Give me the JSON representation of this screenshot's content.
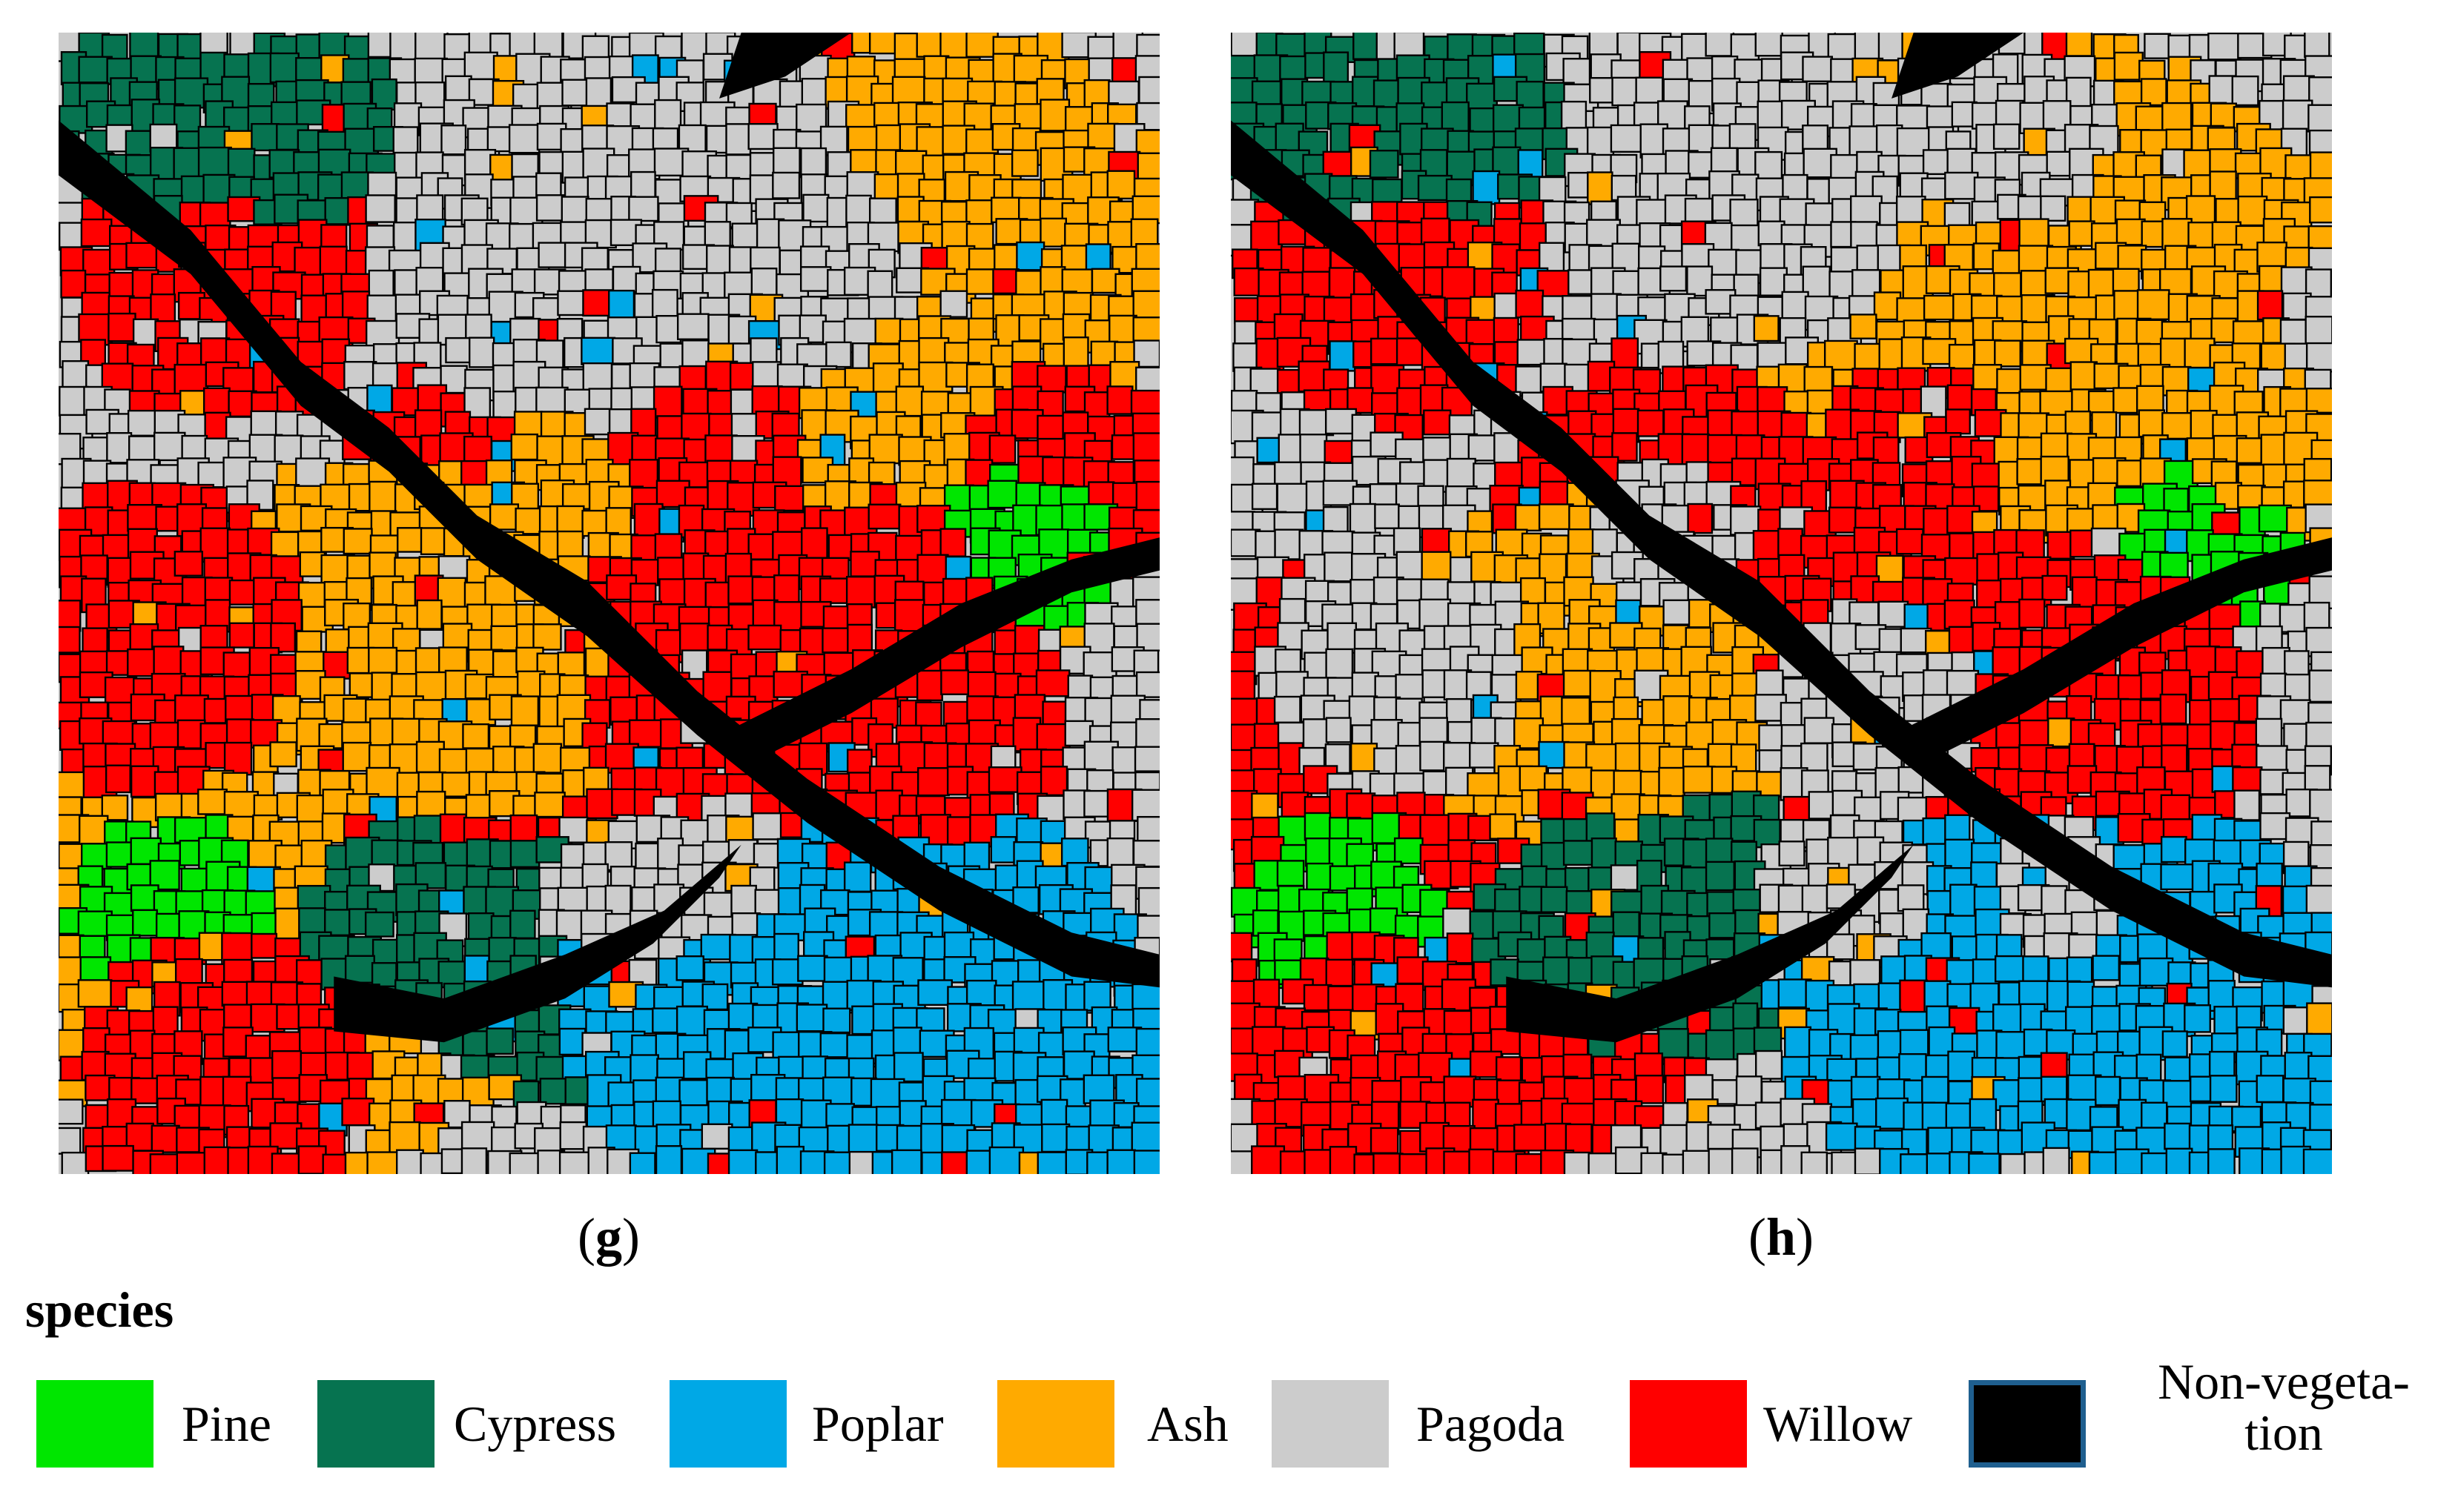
{
  "panels": [
    {
      "id": "g",
      "label": "g"
    },
    {
      "id": "h",
      "label": "h"
    }
  ],
  "legend": {
    "title": "species",
    "items": [
      {
        "label": "Pine",
        "color": "#00e600"
      },
      {
        "label": "Cypress",
        "color": "#067350"
      },
      {
        "label": "Poplar",
        "color": "#00a8e6"
      },
      {
        "label": "Ash",
        "color": "#ffaa00"
      },
      {
        "label": "Pagoda",
        "color": "#cccccc"
      },
      {
        "label": "Willow",
        "color": "#ff0000"
      },
      {
        "label": "Non-vegeta-tion",
        "color": "#000000"
      }
    ]
  },
  "outline_color": "#000000",
  "nonveg_border_color": "#1f5f8f"
}
